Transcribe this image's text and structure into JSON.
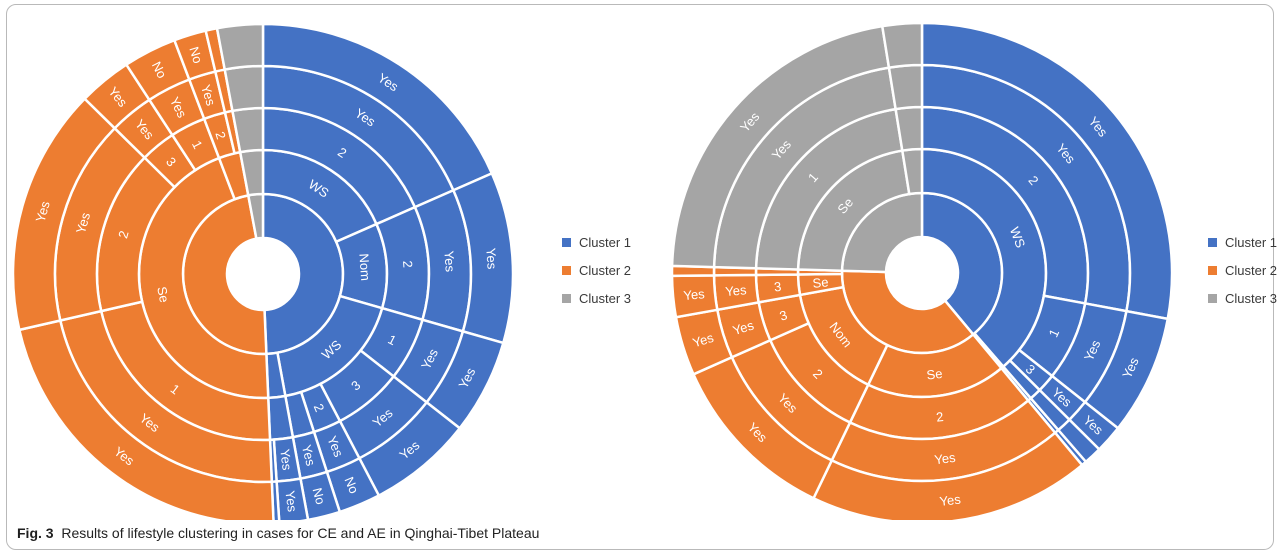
{
  "caption": {
    "label": "Fig. 3",
    "text": "Results of lifestyle clustering in cases for CE and AE in Qinghai-Tibet Plateau"
  },
  "colors": {
    "Cluster 1": "#4472c4",
    "Cluster 2": "#ed7d31",
    "Cluster 3": "#a5a5a5"
  },
  "chart_data": [
    {
      "type": "sunburst",
      "legend": [
        "Cluster 1",
        "Cluster 2",
        "Cluster 3"
      ],
      "legend_position": "right",
      "levels": 5,
      "leaves": [
        {
          "cluster": "Cluster 1",
          "value": 15.0,
          "path": [
            "WS",
            "2",
            "Yes",
            "Yes"
          ]
        },
        {
          "cluster": "Cluster 1",
          "value": 9.0,
          "path": [
            "Nom",
            "2",
            "Yes",
            "Yes"
          ]
        },
        {
          "cluster": "Cluster 1",
          "value": 5.0,
          "path": [
            "WS",
            "1",
            "Yes",
            "Yes"
          ]
        },
        {
          "cluster": "Cluster 1",
          "value": 5.5,
          "path": [
            "WS",
            "3",
            "Yes",
            "Yes"
          ]
        },
        {
          "cluster": "Cluster 1",
          "value": 2.2,
          "path": [
            "WS",
            "2",
            "Yes",
            "No"
          ]
        },
        {
          "cluster": "Cluster 1",
          "value": 1.7,
          "path": [
            "WS",
            "",
            "Yes",
            "No"
          ]
        },
        {
          "cluster": "Cluster 1",
          "value": 1.5,
          "path": [
            "",
            "",
            "Yes",
            "Yes"
          ]
        },
        {
          "cluster": "Cluster 1",
          "value": 0.3,
          "path": [
            "",
            "",
            "",
            ""
          ]
        },
        {
          "cluster": "Cluster 2",
          "value": 18.0,
          "path": [
            "Se",
            "1",
            "Yes",
            "Yes"
          ]
        },
        {
          "cluster": "Cluster 2",
          "value": 13.0,
          "path": [
            "Se",
            "2",
            "Yes",
            "Yes"
          ]
        },
        {
          "cluster": "Cluster 2",
          "value": 2.8,
          "path": [
            "Se",
            "3",
            "Yes",
            "Yes"
          ]
        },
        {
          "cluster": "Cluster 2",
          "value": 2.8,
          "path": [
            "Se",
            "1",
            "Yes",
            "No"
          ]
        },
        {
          "cluster": "Cluster 2",
          "value": 1.7,
          "path": [
            "",
            "2",
            "Yes",
            "No"
          ]
        },
        {
          "cluster": "Cluster 2",
          "value": 0.3,
          "path": [
            "",
            "",
            "",
            ""
          ]
        },
        {
          "cluster": "Cluster 2",
          "value": 0.3,
          "path": [
            "",
            "",
            "",
            ""
          ]
        },
        {
          "cluster": "Cluster 3",
          "value": 0.6,
          "path": [
            "",
            "",
            "",
            ""
          ]
        },
        {
          "cluster": "Cluster 3",
          "value": 0.6,
          "path": [
            "",
            "",
            "",
            ""
          ]
        },
        {
          "cluster": "Cluster 3",
          "value": 0.6,
          "path": [
            "",
            "",
            "",
            ""
          ]
        },
        {
          "cluster": "Cluster 3",
          "value": 0.6,
          "path": [
            "",
            "",
            "",
            ""
          ]
        }
      ]
    },
    {
      "type": "sunburst",
      "legend": [
        "Cluster 1",
        "Cluster 2",
        "Cluster 3"
      ],
      "legend_position": "right",
      "levels": 5,
      "leaves": [
        {
          "cluster": "Cluster 1",
          "value": 26.4,
          "path": [
            "WS",
            "2",
            "Yes",
            "Yes"
          ]
        },
        {
          "cluster": "Cluster 1",
          "value": 7.3,
          "path": [
            "WS",
            "1",
            "Yes",
            "Yes"
          ]
        },
        {
          "cluster": "Cluster 1",
          "value": 1.7,
          "path": [
            "WS",
            "3",
            "Yes",
            "Yes"
          ]
        },
        {
          "cluster": "Cluster 1",
          "value": 1.1,
          "path": [
            "WS",
            "",
            "No",
            ""
          ]
        },
        {
          "cluster": "Cluster 1",
          "value": 0.3,
          "path": [
            "",
            "",
            "",
            ""
          ]
        },
        {
          "cluster": "Cluster 2",
          "value": 17.2,
          "path": [
            "Se",
            "2",
            "Yes",
            "Yes"
          ]
        },
        {
          "cluster": "Cluster 2",
          "value": 10.6,
          "path": [
            "Nom",
            "2",
            "Yes",
            "Yes"
          ]
        },
        {
          "cluster": "Cluster 2",
          "value": 3.6,
          "path": [
            "Nom",
            "3",
            "Yes",
            "Yes"
          ]
        },
        {
          "cluster": "Cluster 2",
          "value": 2.5,
          "path": [
            "Se",
            "3",
            "Yes",
            "Yes"
          ]
        },
        {
          "cluster": "Cluster 2",
          "value": 0.3,
          "path": [
            "",
            "",
            "",
            ""
          ]
        },
        {
          "cluster": "Cluster 2",
          "value": 0.3,
          "path": [
            "",
            "",
            "",
            ""
          ]
        },
        {
          "cluster": "Cluster 3",
          "value": 20.8,
          "path": [
            "Se",
            "1",
            "Yes",
            "Yes"
          ]
        },
        {
          "cluster": "Cluster 3",
          "value": 0.9,
          "path": [
            "",
            "",
            "",
            ""
          ]
        },
        {
          "cluster": "Cluster 3",
          "value": 0.9,
          "path": [
            "",
            "",
            "",
            ""
          ]
        },
        {
          "cluster": "Cluster 3",
          "value": 0.6,
          "path": [
            "",
            "",
            "",
            ""
          ]
        }
      ]
    }
  ]
}
